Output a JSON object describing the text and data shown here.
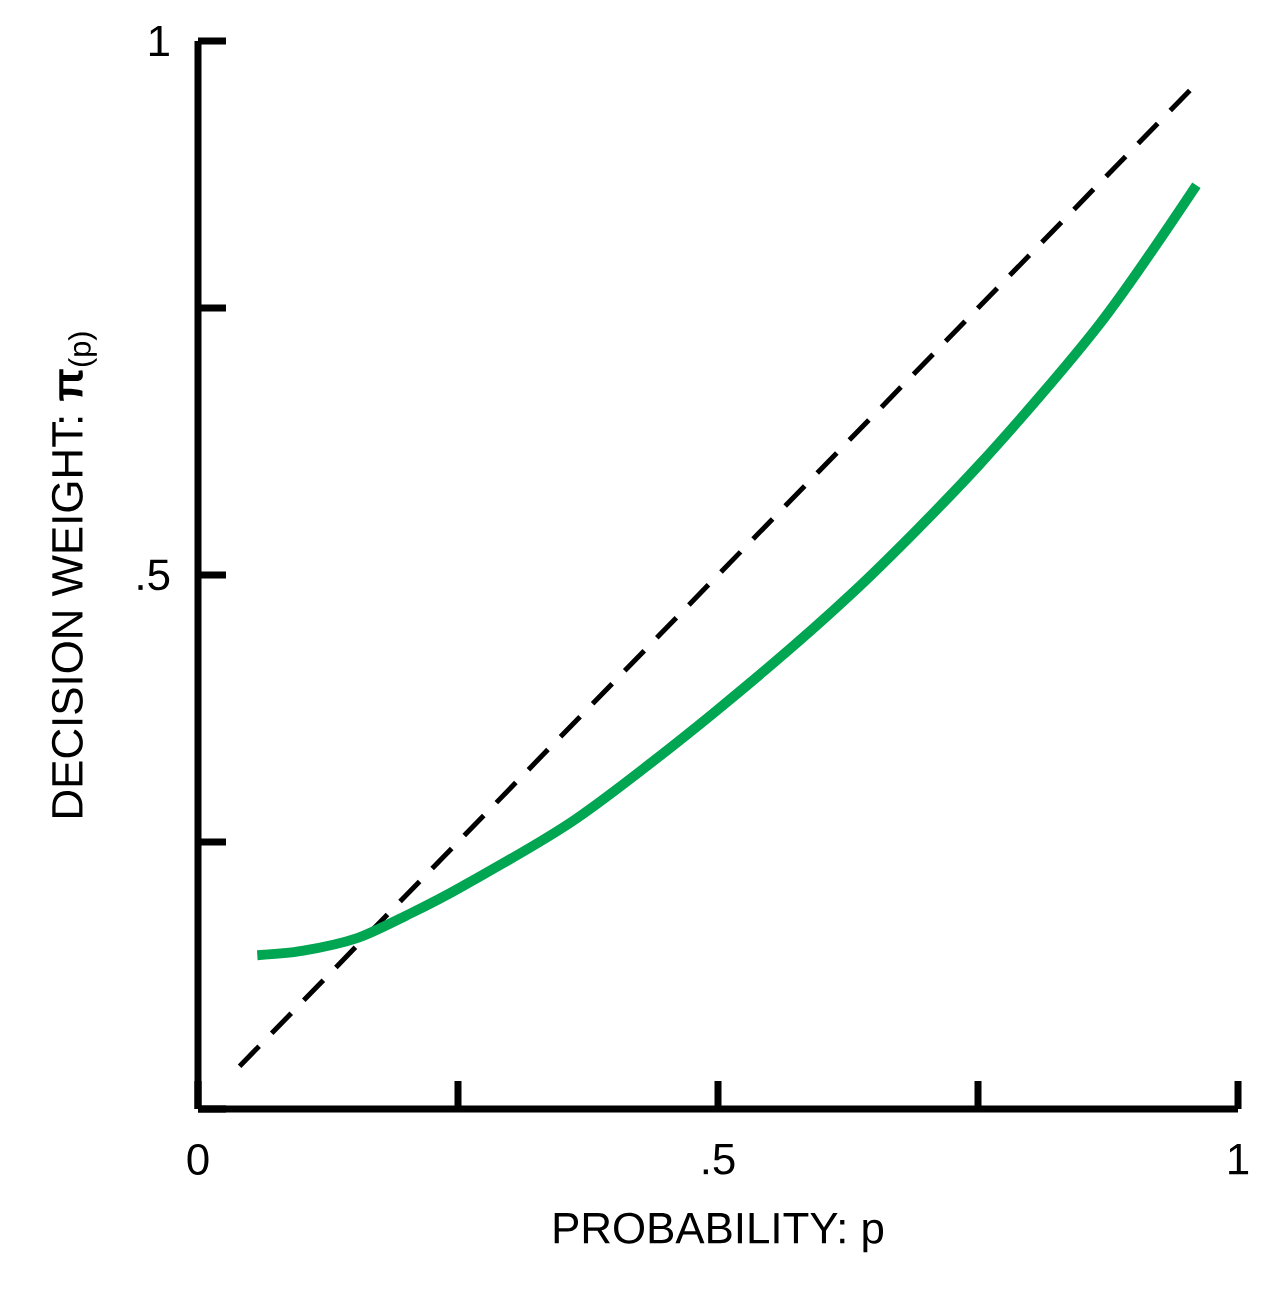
{
  "chart_data": {
    "type": "line",
    "xlabel": "PROBABILITY: p",
    "ylabel": "DECISION WEIGHT: **π**$_{(p)}$",
    "xlim": [
      0,
      1
    ],
    "ylim": [
      0,
      1
    ],
    "xticks": [
      {
        "value": 0,
        "label": "0"
      },
      {
        "value": 0.25,
        "label": null
      },
      {
        "value": 0.5,
        "label": ".5"
      },
      {
        "value": 0.75,
        "label": null
      },
      {
        "value": 1,
        "label": "1"
      }
    ],
    "yticks": [
      {
        "value": 0,
        "label": null
      },
      {
        "value": 0.25,
        "label": null
      },
      {
        "value": 0.5,
        "label": ".5"
      },
      {
        "value": 0.75,
        "label": null
      },
      {
        "value": 1,
        "label": "1"
      }
    ],
    "marker": "none",
    "series": [
      {
        "color": "#000000",
        "line_style": "dashed",
        "x": [
          0.04,
          0.955
        ],
        "values": [
          0.04,
          0.955
        ]
      },
      {
        "color": "#00a651",
        "line_style": "solid",
        "x": [
          0.057,
          0.1,
          0.153,
          0.2,
          0.255,
          0.364,
          0.496,
          0.629,
          0.751,
          0.867,
          0.96
        ],
        "values": [
          0.144,
          0.148,
          0.16,
          0.181,
          0.209,
          0.272,
          0.371,
          0.483,
          0.603,
          0.735,
          0.865
        ]
      }
    ]
  }
}
